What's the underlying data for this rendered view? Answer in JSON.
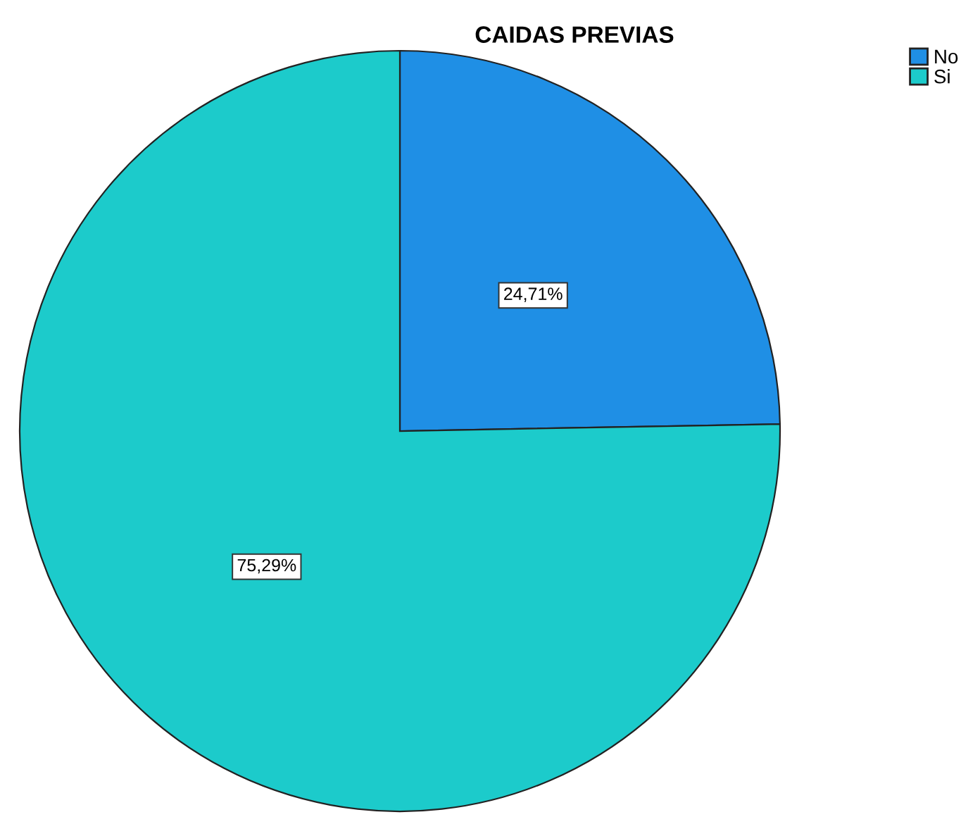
{
  "chart_data": {
    "type": "pie",
    "title": "CAIDAS PREVIAS",
    "categories": [
      "No",
      "Si"
    ],
    "values": [
      24.71,
      75.29
    ],
    "value_labels": [
      "24,71%",
      "75,29%"
    ],
    "colors": [
      "#1f8fe5",
      "#1ccbcb"
    ],
    "legend": "top right"
  }
}
